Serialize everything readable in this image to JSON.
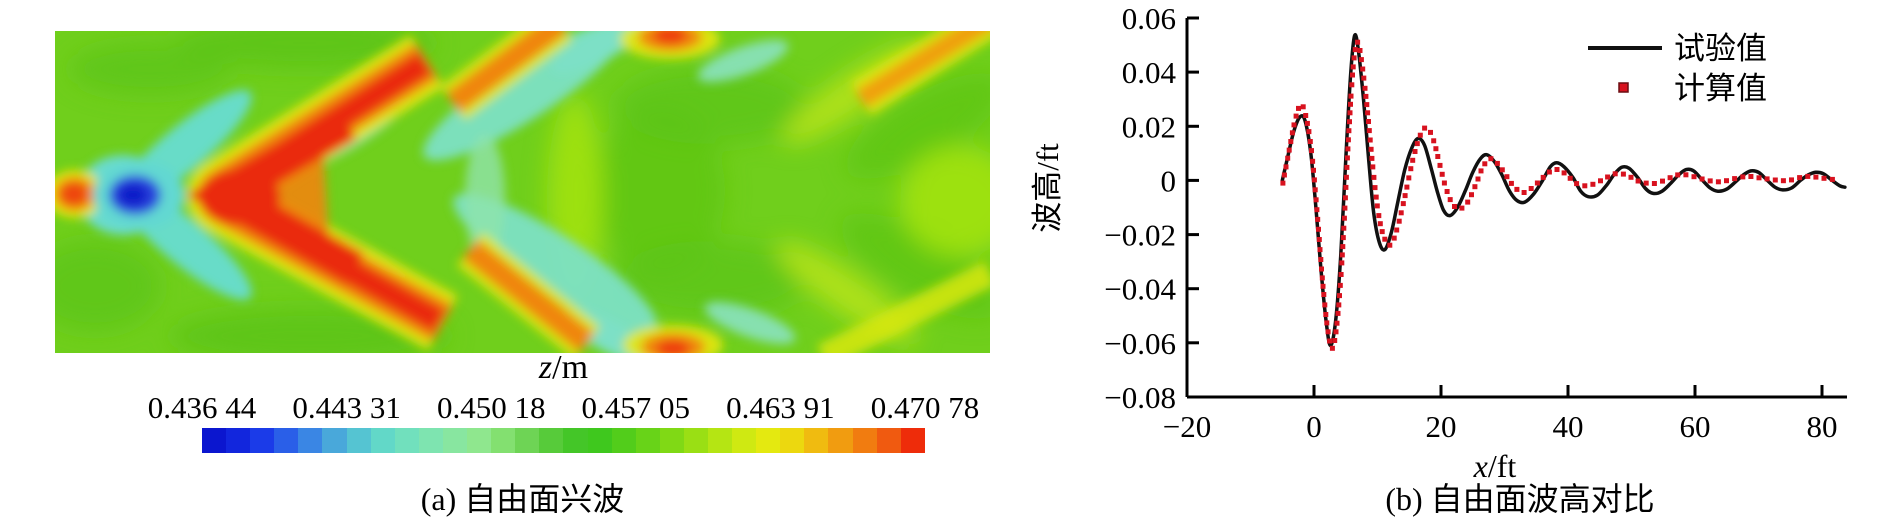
{
  "figure": {
    "panel_a": {
      "caption": "(a) 自由面兴波",
      "colorbar": {
        "title": {
          "symbol": "z",
          "unit": "/m"
        },
        "labels": [
          "0.436 44",
          "0.443 31",
          "0.450 18",
          "0.457 05",
          "0.463 91",
          "0.470 78"
        ],
        "colors": [
          "#0b16cf",
          "#1226dd",
          "#1b3be8",
          "#2a5fe8",
          "#3a86e4",
          "#49a8da",
          "#55c4d2",
          "#62d8c8",
          "#71e0bd",
          "#7ee4b0",
          "#88e6a0",
          "#8fe78e",
          "#83e070",
          "#6ed455",
          "#57cb3a",
          "#44c628",
          "#3fc81e",
          "#52cd1b",
          "#68d318",
          "#80d915",
          "#9adf14",
          "#b5e513",
          "#cfe912",
          "#e4e910",
          "#ecd80f",
          "#f0bb10",
          "#f19c10",
          "#f17c10",
          "#f05a10",
          "#ee2c0a"
        ]
      }
    },
    "panel_b": {
      "caption": "(b) 自由面波高对比"
    }
  },
  "chart_data": {
    "type": "line",
    "title": "",
    "xlabel": {
      "symbol": "x",
      "unit": "/ft"
    },
    "ylabel": "波高/ft",
    "xlim": [
      -20,
      84
    ],
    "ylim": [
      -0.08,
      0.06
    ],
    "xticks": [
      -20,
      0,
      20,
      40,
      60,
      80
    ],
    "yticks": [
      0.06,
      0.04,
      0.02,
      0,
      -0.02,
      -0.04,
      -0.06,
      -0.08
    ],
    "grid": false,
    "legend_position": "top-right",
    "series": [
      {
        "name": "试验值",
        "style": "line",
        "color": "#111111",
        "points": [
          [
            -5.0,
            0.0
          ],
          [
            -4.2,
            0.008
          ],
          [
            -3.2,
            0.018
          ],
          [
            -2.2,
            0.0235
          ],
          [
            -1.4,
            0.022
          ],
          [
            -0.5,
            0.01
          ],
          [
            0.3,
            -0.01
          ],
          [
            1.1,
            -0.033
          ],
          [
            1.9,
            -0.052
          ],
          [
            2.6,
            -0.061
          ],
          [
            3.4,
            -0.052
          ],
          [
            4.2,
            -0.028
          ],
          [
            5.0,
            0.008
          ],
          [
            5.8,
            0.04
          ],
          [
            6.4,
            0.0535
          ],
          [
            7.0,
            0.048
          ],
          [
            7.8,
            0.03
          ],
          [
            8.6,
            0.008
          ],
          [
            9.4,
            -0.012
          ],
          [
            10.3,
            -0.023
          ],
          [
            11.2,
            -0.0255
          ],
          [
            12.2,
            -0.019
          ],
          [
            13.2,
            -0.008
          ],
          [
            14.3,
            0.004
          ],
          [
            15.4,
            0.012
          ],
          [
            16.4,
            0.0155
          ],
          [
            17.4,
            0.013
          ],
          [
            18.4,
            0.005
          ],
          [
            19.4,
            -0.004
          ],
          [
            20.4,
            -0.011
          ],
          [
            21.4,
            -0.013
          ],
          [
            22.6,
            -0.01
          ],
          [
            23.8,
            -0.004
          ],
          [
            25.0,
            0.003
          ],
          [
            26.2,
            0.008
          ],
          [
            27.2,
            0.0095
          ],
          [
            28.4,
            0.007
          ],
          [
            29.6,
            0.002
          ],
          [
            30.8,
            -0.004
          ],
          [
            32.0,
            -0.0075
          ],
          [
            33.2,
            -0.008
          ],
          [
            34.6,
            -0.005
          ],
          [
            36.0,
            0.0
          ],
          [
            37.2,
            0.005
          ],
          [
            38.2,
            0.0065
          ],
          [
            39.4,
            0.005
          ],
          [
            40.8,
            0.001
          ],
          [
            42.0,
            -0.004
          ],
          [
            43.2,
            -0.006
          ],
          [
            44.6,
            -0.0055
          ],
          [
            46.0,
            -0.002
          ],
          [
            47.2,
            0.002
          ],
          [
            48.4,
            0.0048
          ],
          [
            49.6,
            0.0045
          ],
          [
            51.0,
            0.001
          ],
          [
            52.2,
            -0.003
          ],
          [
            53.4,
            -0.0048
          ],
          [
            54.8,
            -0.004
          ],
          [
            56.2,
            -0.001
          ],
          [
            57.4,
            0.002
          ],
          [
            58.6,
            0.004
          ],
          [
            59.8,
            0.0035
          ],
          [
            61.2,
            0.0
          ],
          [
            62.4,
            -0.0028
          ],
          [
            63.6,
            -0.004
          ],
          [
            65.0,
            -0.0032
          ],
          [
            66.4,
            -0.0005
          ],
          [
            67.6,
            0.002
          ],
          [
            68.8,
            0.0035
          ],
          [
            70.0,
            0.003
          ],
          [
            71.4,
            0.0
          ],
          [
            72.6,
            -0.0025
          ],
          [
            73.8,
            -0.0035
          ],
          [
            75.2,
            -0.0028
          ],
          [
            76.6,
            0.0
          ],
          [
            77.8,
            0.002
          ],
          [
            79.0,
            0.003
          ],
          [
            80.2,
            0.0025
          ],
          [
            81.6,
            0.0
          ],
          [
            82.8,
            -0.002
          ],
          [
            83.6,
            -0.0025
          ]
        ]
      },
      {
        "name": "计算值",
        "style": "scatter",
        "color": "#d8121f",
        "points": [
          [
            -4.9,
            -0.001
          ],
          [
            -4.0,
            0.01
          ],
          [
            -3.0,
            0.022
          ],
          [
            -2.1,
            0.028
          ],
          [
            -1.3,
            0.024
          ],
          [
            -0.4,
            0.011
          ],
          [
            0.5,
            -0.012
          ],
          [
            1.3,
            -0.036
          ],
          [
            2.1,
            -0.054
          ],
          [
            2.9,
            -0.062
          ],
          [
            3.7,
            -0.051
          ],
          [
            4.5,
            -0.026
          ],
          [
            5.3,
            0.01
          ],
          [
            6.1,
            0.04
          ],
          [
            6.8,
            0.051
          ],
          [
            7.5,
            0.044
          ],
          [
            8.4,
            0.026
          ],
          [
            9.3,
            0.004
          ],
          [
            10.2,
            -0.013
          ],
          [
            11.2,
            -0.022
          ],
          [
            12.2,
            -0.0235
          ],
          [
            13.3,
            -0.016
          ],
          [
            14.4,
            -0.005
          ],
          [
            15.6,
            0.008
          ],
          [
            16.8,
            0.017
          ],
          [
            17.8,
            0.0195
          ],
          [
            18.8,
            0.015
          ],
          [
            19.8,
            0.006
          ],
          [
            20.8,
            -0.003
          ],
          [
            21.9,
            -0.009
          ],
          [
            23.0,
            -0.0105
          ],
          [
            24.2,
            -0.008
          ],
          [
            25.4,
            -0.002
          ],
          [
            26.6,
            0.005
          ],
          [
            27.8,
            0.008
          ],
          [
            29.0,
            0.006
          ],
          [
            30.2,
            0.002
          ],
          [
            31.4,
            -0.002
          ],
          [
            32.8,
            -0.0045
          ],
          [
            34.2,
            -0.003
          ],
          [
            35.6,
            0.0
          ],
          [
            37.0,
            0.003
          ],
          [
            38.4,
            0.004
          ],
          [
            39.8,
            0.002
          ],
          [
            41.2,
            -0.001
          ],
          [
            42.8,
            -0.002
          ],
          [
            44.4,
            -0.001
          ],
          [
            46.0,
            0.001
          ],
          [
            47.6,
            0.0025
          ],
          [
            49.2,
            0.002
          ],
          [
            50.8,
            0.0
          ],
          [
            52.4,
            -0.001
          ],
          [
            54.0,
            -0.001
          ],
          [
            55.6,
            0.0005
          ],
          [
            57.2,
            0.002
          ],
          [
            58.8,
            0.002
          ],
          [
            60.4,
            0.001
          ],
          [
            62.0,
            0.0
          ],
          [
            63.6,
            -0.0005
          ],
          [
            65.2,
            0.0
          ],
          [
            66.8,
            0.001
          ],
          [
            68.4,
            0.0015
          ],
          [
            70.0,
            0.001
          ],
          [
            71.6,
            0.0005
          ],
          [
            73.2,
            0.0
          ],
          [
            74.8,
            0.0
          ],
          [
            76.4,
            0.001
          ],
          [
            78.0,
            0.0015
          ],
          [
            79.6,
            0.001
          ],
          [
            81.2,
            0.0005
          ],
          [
            82.8,
            0.0
          ]
        ]
      }
    ]
  }
}
